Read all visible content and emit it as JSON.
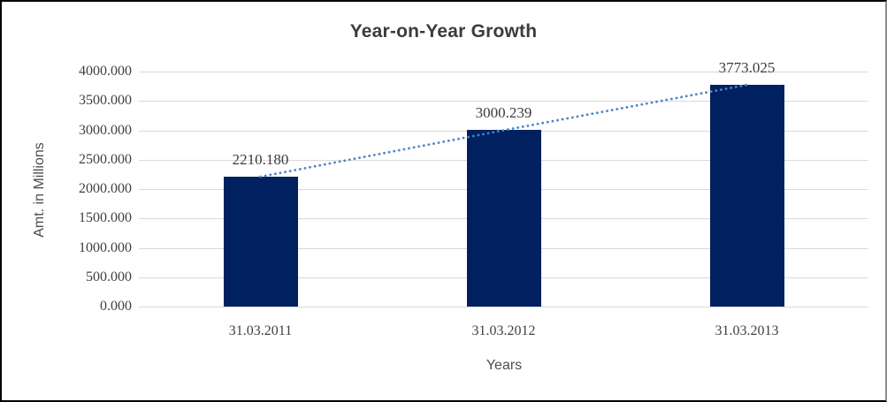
{
  "chart_data": {
    "type": "bar",
    "title": "Year-on-Year Growth",
    "xlabel": "Years",
    "ylabel": "Amt. in Millions",
    "categories": [
      "31.03.2011",
      "31.03.2012",
      "31.03.2013"
    ],
    "values": [
      2210.18,
      3000.239,
      3773.025
    ],
    "data_labels": [
      "2210.180",
      "3000.239",
      "3773.025"
    ],
    "ylim": [
      0,
      4000
    ],
    "ytick_step": 500,
    "ytick_labels": [
      "4000.000",
      "3500.000",
      "3000.000",
      "2500.000",
      "2000.000",
      "1500.000",
      "1000.000",
      "500.000",
      "0.000"
    ],
    "grid": true,
    "legend_position": "none",
    "trendline": {
      "type": "linear",
      "style": "dotted"
    }
  },
  "colors": {
    "bar": "#002060",
    "trendline": "#4a86c6",
    "gridline": "#d9d9d9",
    "text": "#404040",
    "title_text": "#3b3b3b",
    "background": "#ffffff"
  }
}
